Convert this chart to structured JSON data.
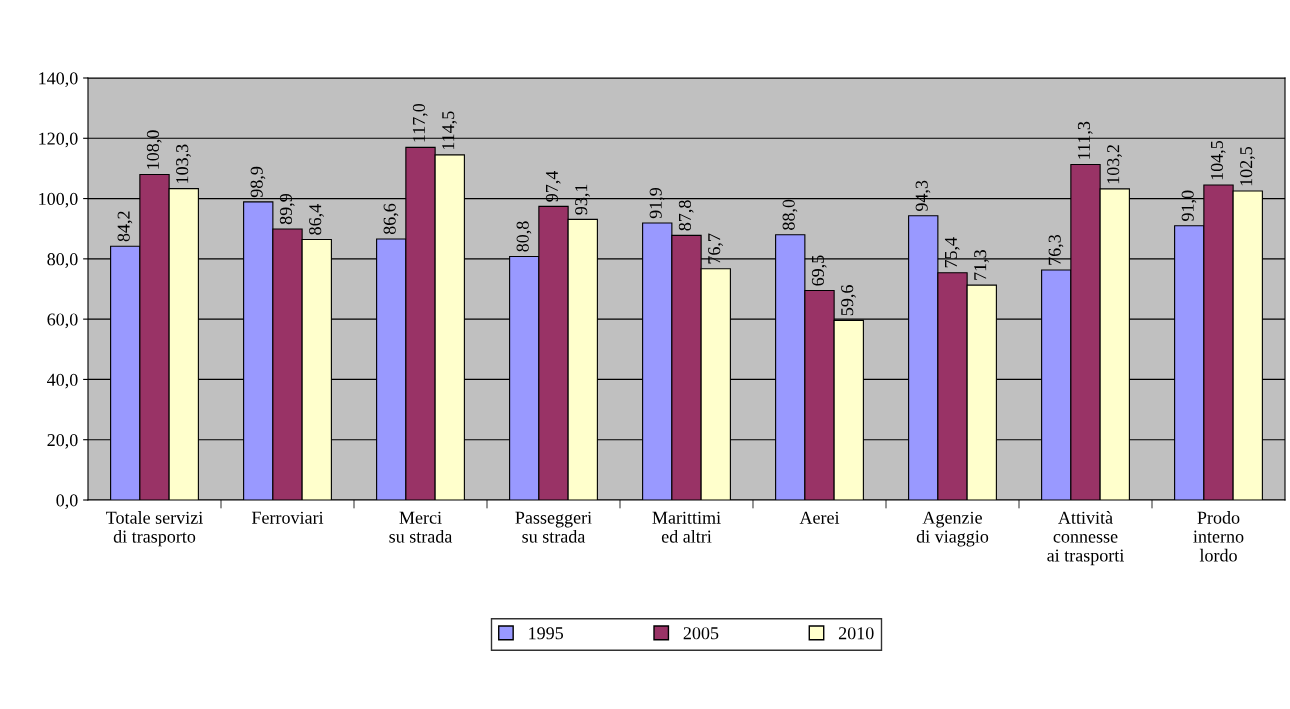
{
  "chart_data": {
    "type": "bar",
    "categories": [
      "Totale servizi\ndi trasporto",
      "Ferroviari",
      "Merci\nsu strada",
      "Passeggeri\nsu strada",
      "Marittimi\ned altri",
      "Aerei",
      "Agenzie\ndi viaggio",
      "Attività\nconnesse\nai trasporti",
      "Prodo\ninterno\nlordo"
    ],
    "series": [
      {
        "name": "1995",
        "color": "#9999ff",
        "values": [
          84.2,
          98.9,
          86.6,
          80.8,
          91.9,
          88.0,
          94.3,
          76.3,
          91.0
        ],
        "value_labels": [
          "84,2",
          "98,9",
          "86,6",
          "80,8",
          "91,9",
          "88,0",
          "94,3",
          "76,3",
          "91,0"
        ]
      },
      {
        "name": "2005",
        "color": "#993366",
        "values": [
          108.0,
          89.9,
          117.0,
          97.4,
          87.8,
          69.5,
          75.4,
          111.3,
          104.5
        ],
        "value_labels": [
          "108,0",
          "89,9",
          "117,0",
          "97,4",
          "87,8",
          "69,5",
          "75,4",
          "111,3",
          "104,5"
        ]
      },
      {
        "name": "2010",
        "color": "#ffffcc",
        "values": [
          103.3,
          86.4,
          114.5,
          93.1,
          76.7,
          59.6,
          71.3,
          103.2,
          102.5
        ],
        "value_labels": [
          "103,3",
          "86,4",
          "114,5",
          "93,1",
          "76,7",
          "59,6",
          "71,3",
          "103,2",
          "102,5"
        ]
      }
    ],
    "ylim": [
      0,
      140
    ],
    "yticks": [
      {
        "value": 0,
        "label": "0,0"
      },
      {
        "value": 20,
        "label": "20,0"
      },
      {
        "value": 40,
        "label": "40,0"
      },
      {
        "value": 60,
        "label": "60,0"
      },
      {
        "value": 80,
        "label": "80,0"
      },
      {
        "value": 100,
        "label": "100,0"
      },
      {
        "value": 120,
        "label": "120,0"
      },
      {
        "value": 140,
        "label": "140,0"
      }
    ],
    "grid": "y",
    "legend": "bottom"
  }
}
